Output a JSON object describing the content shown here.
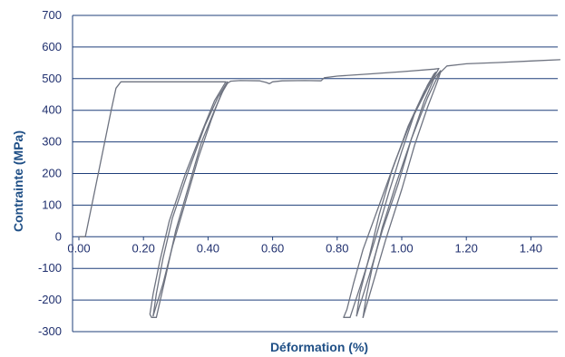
{
  "chart_data": {
    "type": "line",
    "title": "",
    "xlabel": "Déformation (%)",
    "ylabel": "Contrainte (MPa)",
    "xlim": [
      0,
      1.6
    ],
    "ylim": [
      -300,
      700
    ],
    "x_ticks": [
      0,
      0.2,
      0.4,
      0.6,
      0.8,
      1.0,
      1.2,
      1.4
    ],
    "x_tick_labels": [
      "0.00",
      "0.20",
      "0.40",
      "0.60",
      "0.80",
      "1.00",
      "1.20",
      "1.40"
    ],
    "y_ticks": [
      700,
      600,
      500,
      400,
      300,
      200,
      100,
      0,
      -100,
      -200,
      -300
    ],
    "y_tick_labels": [
      "700",
      "600",
      "500",
      "400",
      "300",
      "200",
      "100",
      "0",
      "-100",
      "-200",
      "-300"
    ],
    "grid": "horizontal",
    "colors": {
      "curve": "#6e7380",
      "grid": "#1f3f7a",
      "axis": "#1f3f7a",
      "text": "#1f4f86"
    },
    "series": [
      {
        "x": [
          0.0,
          0.02,
          0.05,
          0.08,
          0.1,
          0.115,
          0.13,
          0.2,
          0.3,
          0.38,
          0.43,
          0.455
        ],
        "y": [
          0,
          0,
          150,
          300,
          400,
          470,
          490,
          490,
          490,
          490,
          490,
          490
        ]
      },
      {
        "x": [
          0.455,
          0.42,
          0.38,
          0.33,
          0.28,
          0.25,
          0.23,
          0.22,
          0.225,
          0.24
        ],
        "y": [
          490,
          430,
          330,
          200,
          50,
          -80,
          -180,
          -245,
          -255,
          -255
        ]
      },
      {
        "x": [
          0.24,
          0.27,
          0.3,
          0.34,
          0.38,
          0.42,
          0.45,
          0.46
        ],
        "y": [
          -255,
          -120,
          20,
          160,
          300,
          400,
          470,
          490
        ]
      },
      {
        "x": [
          0.46,
          0.43,
          0.39,
          0.34,
          0.29,
          0.26,
          0.24,
          0.23
        ],
        "y": [
          490,
          440,
          350,
          210,
          60,
          -70,
          -180,
          -250
        ]
      },
      {
        "x": [
          0.23,
          0.26,
          0.29,
          0.33,
          0.37,
          0.41,
          0.44,
          0.46,
          0.47
        ],
        "y": [
          -250,
          -150,
          -30,
          110,
          250,
          370,
          450,
          485,
          492
        ]
      },
      {
        "x": [
          0.47,
          0.5,
          0.56,
          0.58,
          0.59,
          0.6,
          0.63,
          0.7,
          0.75,
          0.76,
          0.8,
          0.9,
          1.0,
          1.1,
          1.115
        ],
        "y": [
          492,
          494,
          493,
          488,
          484,
          490,
          493,
          494,
          493,
          503,
          508,
          515,
          522,
          530,
          532
        ]
      },
      {
        "x": [
          1.115,
          1.08,
          1.03,
          0.98,
          0.93,
          0.88,
          0.85,
          0.83,
          0.82,
          0.84
        ],
        "y": [
          532,
          470,
          370,
          240,
          100,
          -40,
          -150,
          -230,
          -255,
          -255
        ]
      },
      {
        "x": [
          0.84,
          0.88,
          0.92,
          0.96,
          1.0,
          1.04,
          1.08,
          1.1,
          1.105
        ],
        "y": [
          -255,
          -130,
          0,
          140,
          270,
          390,
          480,
          515,
          520
        ]
      },
      {
        "x": [
          1.105,
          1.07,
          1.02,
          0.97,
          0.93,
          0.9,
          0.87,
          0.86
        ],
        "y": [
          520,
          460,
          350,
          210,
          70,
          -60,
          -180,
          -250
        ]
      },
      {
        "x": [
          0.86,
          0.9,
          0.94,
          0.99,
          1.03,
          1.07,
          1.1,
          1.12
        ],
        "y": [
          -250,
          -120,
          20,
          170,
          310,
          430,
          500,
          525
        ]
      },
      {
        "x": [
          1.12,
          1.08,
          1.03,
          0.98,
          0.94,
          0.91,
          0.89,
          0.88
        ],
        "y": [
          525,
          440,
          310,
          160,
          30,
          -90,
          -190,
          -255
        ]
      },
      {
        "x": [
          0.88,
          0.91,
          0.95,
          1.0,
          1.04,
          1.08,
          1.11,
          1.12,
          1.14,
          1.2,
          1.3,
          1.4,
          1.49
        ],
        "y": [
          -255,
          -150,
          -10,
          150,
          290,
          410,
          490,
          520,
          540,
          547,
          551,
          556,
          560
        ]
      }
    ]
  }
}
